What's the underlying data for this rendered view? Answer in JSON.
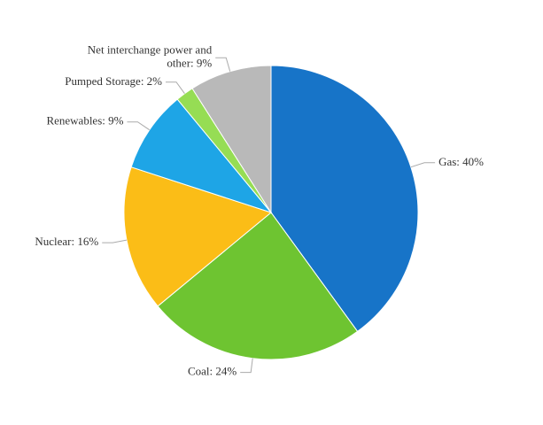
{
  "chart_data": {
    "type": "pie",
    "values": [
      40,
      24,
      16,
      9,
      2,
      9
    ],
    "value_labels": [
      "Gas: 40%",
      "Coal: 24%",
      "Nuclear: 16%",
      "Renewables: 9%",
      "Pumped Storage: 2%",
      "Net interchange power and other: 9%"
    ],
    "colors": [
      "#1774c8",
      "#6ec431",
      "#fbbd17",
      "#1ea5e6",
      "#96dd54",
      "#b9b9b9"
    ]
  }
}
